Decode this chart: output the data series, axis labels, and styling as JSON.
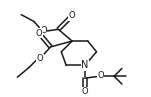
{
  "bg_color": "#ffffff",
  "line_color": "#1a1a1a",
  "line_width": 1.1,
  "font_size": 6.0,
  "fig_width": 1.51,
  "fig_height": 0.97,
  "dpi": 100,
  "xlim": [
    0,
    151
  ],
  "ylim": [
    0,
    97
  ]
}
